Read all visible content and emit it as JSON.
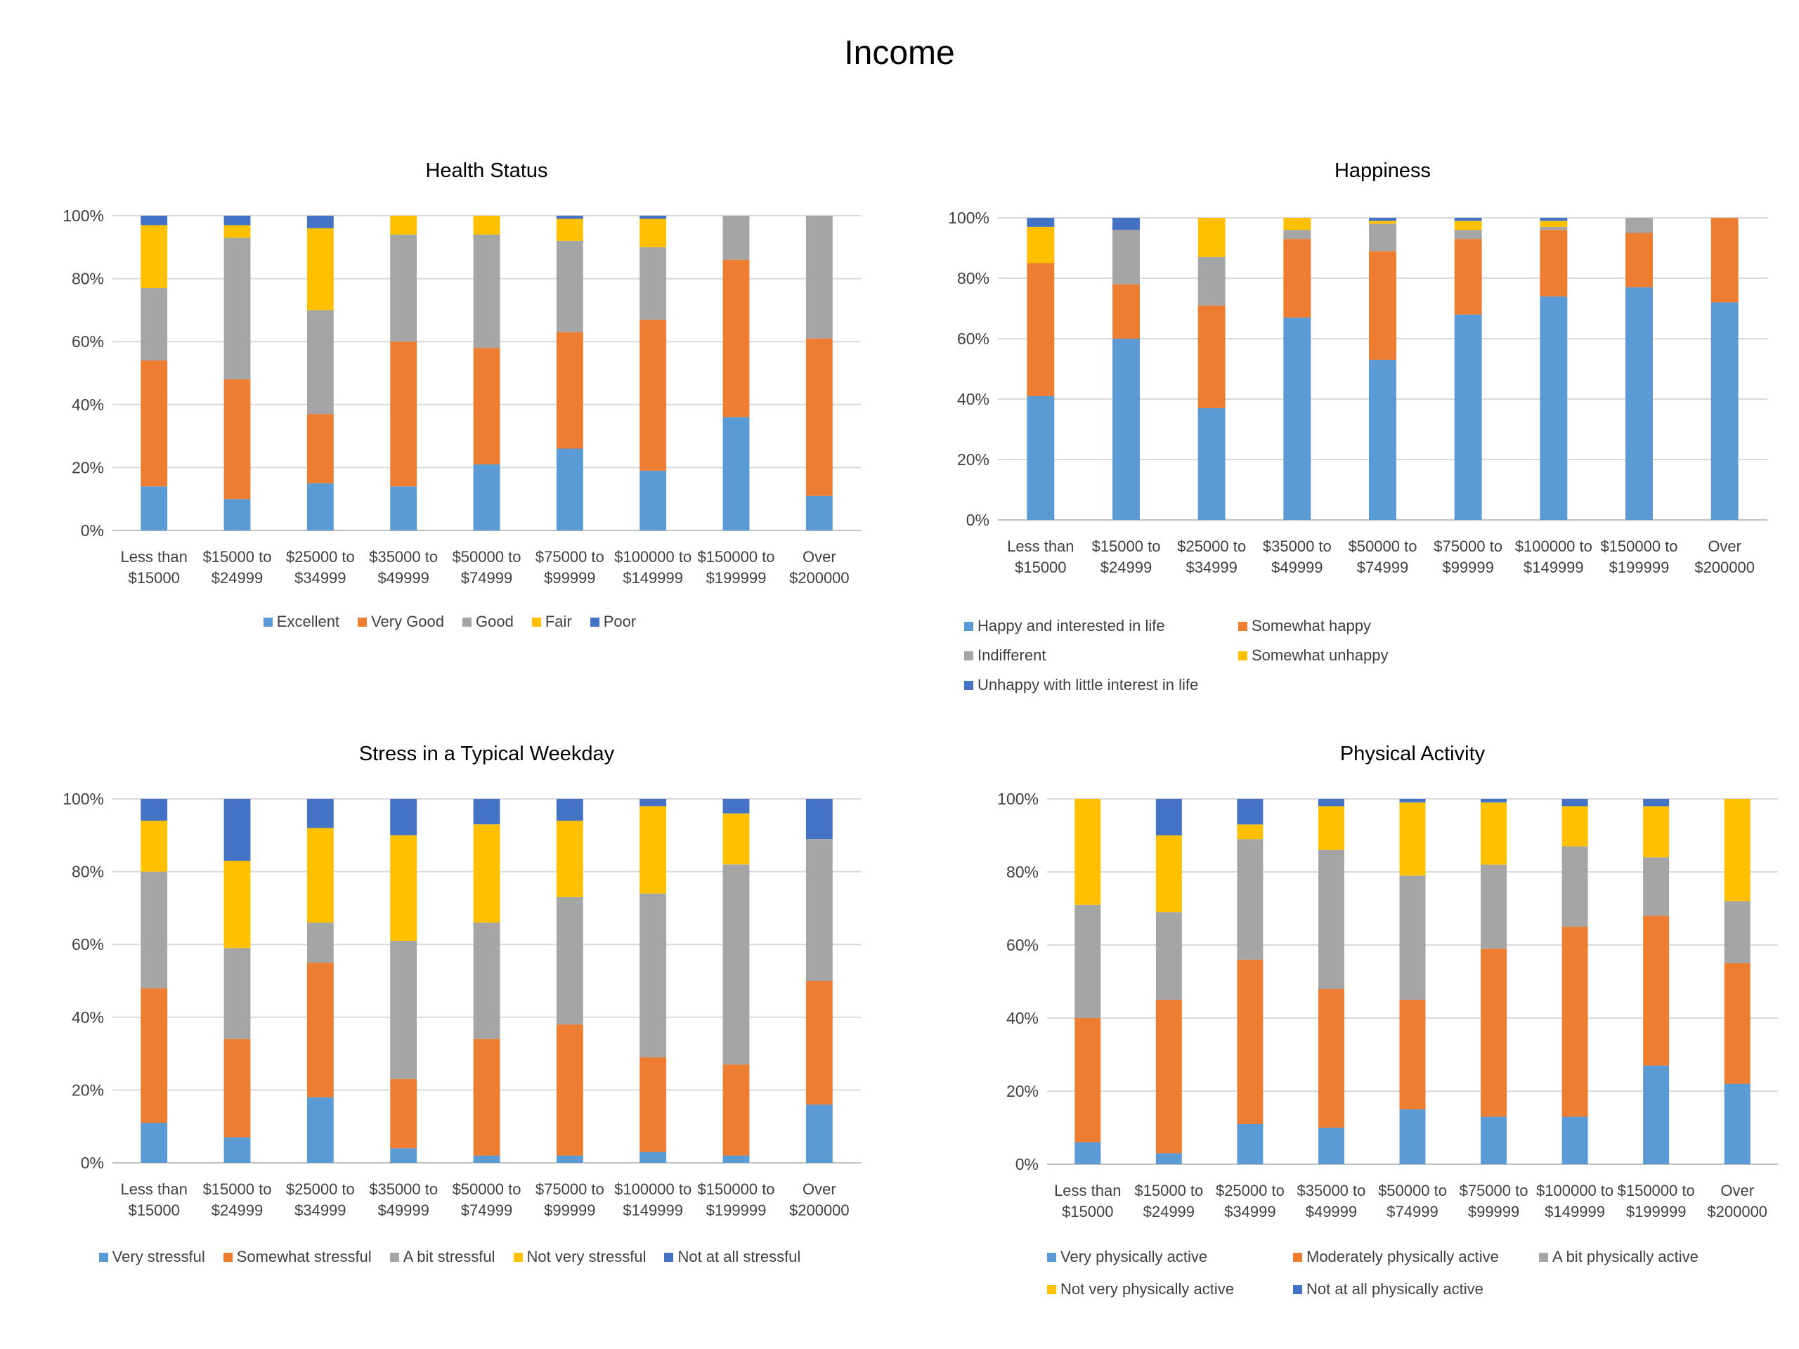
{
  "page_title": "Income",
  "chart_data": [
    {
      "type": "bar",
      "stacked": true,
      "percent_axis": true,
      "title": "Health Status",
      "categories": [
        "Less than $15000",
        "$15000 to $24999",
        "$25000 to $34999",
        "$35000 to $49999",
        "$50000 to $74999",
        "$75000 to $99999",
        "$100000 to $149999",
        "$150000 to $199999",
        "Over $200000"
      ],
      "category_lines": [
        [
          "Less than",
          "$15000"
        ],
        [
          "$15000 to",
          "$24999"
        ],
        [
          "$25000 to",
          "$34999"
        ],
        [
          "$35000 to",
          "$49999"
        ],
        [
          "$50000 to",
          "$74999"
        ],
        [
          "$75000 to",
          "$99999"
        ],
        [
          "$100000 to",
          "$149999"
        ],
        [
          "$150000 to",
          "$199999"
        ],
        [
          "Over",
          "$200000"
        ]
      ],
      "ylim": [
        0,
        100
      ],
      "yticks": [
        "0%",
        "20%",
        "40%",
        "60%",
        "80%",
        "100%"
      ],
      "grid": true,
      "legend_position": "bottom",
      "series": [
        {
          "name": "Excellent",
          "color": "#5B9BD5",
          "values": [
            14,
            10,
            15,
            14,
            21,
            26,
            19,
            36,
            11
          ]
        },
        {
          "name": "Very Good",
          "color": "#ED7D31",
          "values": [
            40,
            38,
            22,
            46,
            37,
            37,
            48,
            50,
            50
          ]
        },
        {
          "name": "Good",
          "color": "#A5A5A5",
          "values": [
            23,
            45,
            33,
            34,
            36,
            29,
            23,
            14,
            39
          ]
        },
        {
          "name": "Fair",
          "color": "#FFC000",
          "values": [
            20,
            4,
            26,
            6,
            6,
            7,
            9,
            0,
            0
          ]
        },
        {
          "name": "Poor",
          "color": "#4472C4",
          "values": [
            3,
            3,
            4,
            0,
            0,
            1,
            1,
            0,
            0
          ]
        }
      ]
    },
    {
      "type": "bar",
      "stacked": true,
      "percent_axis": true,
      "title": "Happiness",
      "categories": [
        "Less than $15000",
        "$15000 to $24999",
        "$25000 to $34999",
        "$35000 to $49999",
        "$50000 to $74999",
        "$75000 to $99999",
        "$100000 to $149999",
        "$150000 to $199999",
        "Over $200000"
      ],
      "category_lines": [
        [
          "Less than",
          "$15000"
        ],
        [
          "$15000 to",
          "$24999"
        ],
        [
          "$25000 to",
          "$34999"
        ],
        [
          "$35000 to",
          "$49999"
        ],
        [
          "$50000 to",
          "$74999"
        ],
        [
          "$75000 to",
          "$99999"
        ],
        [
          "$100000 to",
          "$149999"
        ],
        [
          "$150000 to",
          "$199999"
        ],
        [
          "Over",
          "$200000"
        ]
      ],
      "ylim": [
        0,
        100
      ],
      "yticks": [
        "0%",
        "20%",
        "40%",
        "60%",
        "80%",
        "100%"
      ],
      "grid": true,
      "legend_position": "bottom",
      "series": [
        {
          "name": "Happy and interested in life",
          "color": "#5B9BD5",
          "values": [
            41,
            60,
            37,
            67,
            53,
            68,
            74,
            77,
            72
          ]
        },
        {
          "name": "Somewhat happy",
          "color": "#ED7D31",
          "values": [
            44,
            18,
            34,
            26,
            36,
            25,
            22,
            18,
            28
          ]
        },
        {
          "name": "Indifferent",
          "color": "#A5A5A5",
          "values": [
            0,
            18,
            16,
            3,
            9,
            3,
            1,
            5,
            0
          ]
        },
        {
          "name": "Somewhat unhappy",
          "color": "#FFC000",
          "values": [
            12,
            0,
            13,
            4,
            1,
            3,
            2,
            0,
            0
          ]
        },
        {
          "name": "Unhappy with little interest in life",
          "color": "#4472C4",
          "values": [
            3,
            4,
            0,
            0,
            1,
            1,
            1,
            0,
            0
          ]
        }
      ]
    },
    {
      "type": "bar",
      "stacked": true,
      "percent_axis": true,
      "title": "Stress in a Typical Weekday",
      "categories": [
        "Less than $15000",
        "$15000 to $24999",
        "$25000 to $34999",
        "$35000 to $49999",
        "$50000 to $74999",
        "$75000 to $99999",
        "$100000 to $149999",
        "$150000 to $199999",
        "Over $200000"
      ],
      "category_lines": [
        [
          "Less than",
          "$15000"
        ],
        [
          "$15000 to",
          "$24999"
        ],
        [
          "$25000 to",
          "$34999"
        ],
        [
          "$35000 to",
          "$49999"
        ],
        [
          "$50000 to",
          "$74999"
        ],
        [
          "$75000 to",
          "$99999"
        ],
        [
          "$100000 to",
          "$149999"
        ],
        [
          "$150000 to",
          "$199999"
        ],
        [
          "Over",
          "$200000"
        ]
      ],
      "ylim": [
        0,
        100
      ],
      "yticks": [
        "0%",
        "20%",
        "40%",
        "60%",
        "80%",
        "100%"
      ],
      "grid": true,
      "legend_position": "bottom",
      "series": [
        {
          "name": "Very stressful",
          "color": "#5B9BD5",
          "values": [
            11,
            7,
            18,
            4,
            2,
            2,
            3,
            2,
            16
          ]
        },
        {
          "name": "Somewhat stressful",
          "color": "#ED7D31",
          "values": [
            37,
            27,
            37,
            19,
            32,
            36,
            26,
            25,
            34
          ]
        },
        {
          "name": "A bit stressful",
          "color": "#A5A5A5",
          "values": [
            32,
            25,
            11,
            38,
            32,
            35,
            45,
            55,
            39
          ]
        },
        {
          "name": "Not very stressful",
          "color": "#FFC000",
          "values": [
            14,
            24,
            26,
            29,
            27,
            21,
            24,
            14,
            0
          ]
        },
        {
          "name": "Not at all stressful",
          "color": "#4472C4",
          "values": [
            6,
            17,
            8,
            10,
            7,
            6,
            2,
            4,
            11
          ]
        }
      ]
    },
    {
      "type": "bar",
      "stacked": true,
      "percent_axis": true,
      "title": "Physical Activity",
      "categories": [
        "Less than $15000",
        "$15000 to $24999",
        "$25000 to $34999",
        "$35000 to $49999",
        "$50000 to $74999",
        "$75000 to $99999",
        "$100000 to $149999",
        "$150000 to $199999",
        "Over $200000"
      ],
      "category_lines": [
        [
          "Less than",
          "$15000"
        ],
        [
          "$15000 to",
          "$24999"
        ],
        [
          "$25000 to",
          "$34999"
        ],
        [
          "$35000 to",
          "$49999"
        ],
        [
          "$50000 to",
          "$74999"
        ],
        [
          "$75000 to",
          "$99999"
        ],
        [
          "$100000 to",
          "$149999"
        ],
        [
          "$150000 to",
          "$199999"
        ],
        [
          "Over",
          "$200000"
        ]
      ],
      "ylim": [
        0,
        100
      ],
      "yticks": [
        "0%",
        "20%",
        "40%",
        "60%",
        "80%",
        "100%"
      ],
      "grid": true,
      "legend_position": "bottom",
      "series": [
        {
          "name": "Very physically active",
          "color": "#5B9BD5",
          "values": [
            6,
            3,
            11,
            10,
            15,
            13,
            13,
            27,
            22
          ]
        },
        {
          "name": "Moderately physically active",
          "color": "#ED7D31",
          "values": [
            34,
            42,
            45,
            38,
            30,
            46,
            52,
            41,
            33
          ]
        },
        {
          "name": "A bit physically active",
          "color": "#A5A5A5",
          "values": [
            31,
            24,
            33,
            38,
            34,
            23,
            22,
            16,
            17
          ]
        },
        {
          "name": "Not very physically active",
          "color": "#FFC000",
          "values": [
            29,
            21,
            4,
            12,
            20,
            17,
            11,
            14,
            28
          ]
        },
        {
          "name": "Not at all physically active",
          "color": "#4472C4",
          "values": [
            0,
            10,
            7,
            2,
            1,
            1,
            2,
            2,
            0
          ]
        }
      ]
    }
  ]
}
